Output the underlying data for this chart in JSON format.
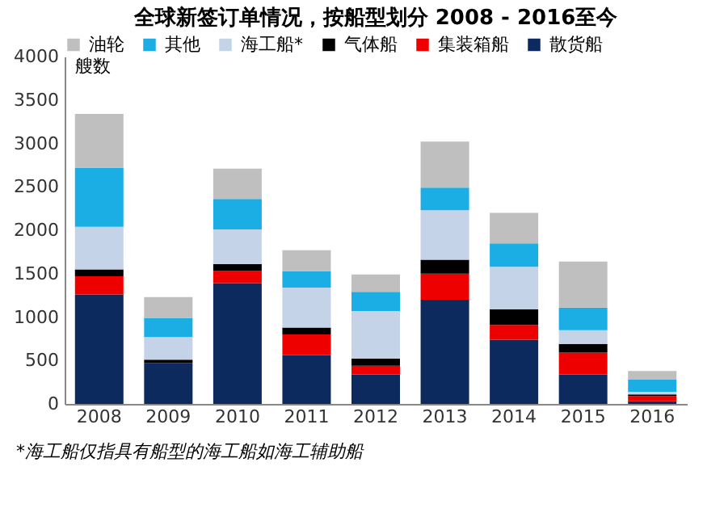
{
  "chart_data": {
    "type": "bar",
    "stacked": true,
    "title": "全球新签订单情况，按船型划分 2008 - 2016至今",
    "ylabel": "艘数",
    "categories": [
      "2008",
      "2009",
      "2010",
      "2011",
      "2012",
      "2013",
      "2014",
      "2015",
      "2016"
    ],
    "series": [
      {
        "name": "散货船",
        "color": "#0d2a5e",
        "values": [
          1260,
          470,
          1390,
          560,
          340,
          1200,
          740,
          340,
          30
        ]
      },
      {
        "name": "集装箱船",
        "color": "#ee0000",
        "values": [
          210,
          0,
          140,
          240,
          100,
          300,
          170,
          250,
          60
        ]
      },
      {
        "name": "气体船",
        "color": "#000000",
        "values": [
          80,
          40,
          80,
          80,
          80,
          160,
          180,
          100,
          20
        ]
      },
      {
        "name": "海工船*",
        "color": "#c5d3e8",
        "values": [
          490,
          260,
          400,
          460,
          550,
          570,
          490,
          160,
          30
        ]
      },
      {
        "name": "其他",
        "color": "#1aaee5",
        "values": [
          680,
          220,
          350,
          190,
          220,
          260,
          270,
          260,
          140
        ]
      },
      {
        "name": "油轮",
        "color": "#bfbfbf",
        "values": [
          620,
          240,
          350,
          240,
          200,
          530,
          350,
          530,
          100
        ]
      }
    ],
    "ylim": [
      0,
      4000
    ],
    "yticks": [
      0,
      500,
      1000,
      1500,
      2000,
      2500,
      3000,
      3500,
      4000
    ],
    "grid": false,
    "legend": "top",
    "annotations": [
      "*海工船仅指具有船型的海工船如海工辅助船"
    ]
  }
}
